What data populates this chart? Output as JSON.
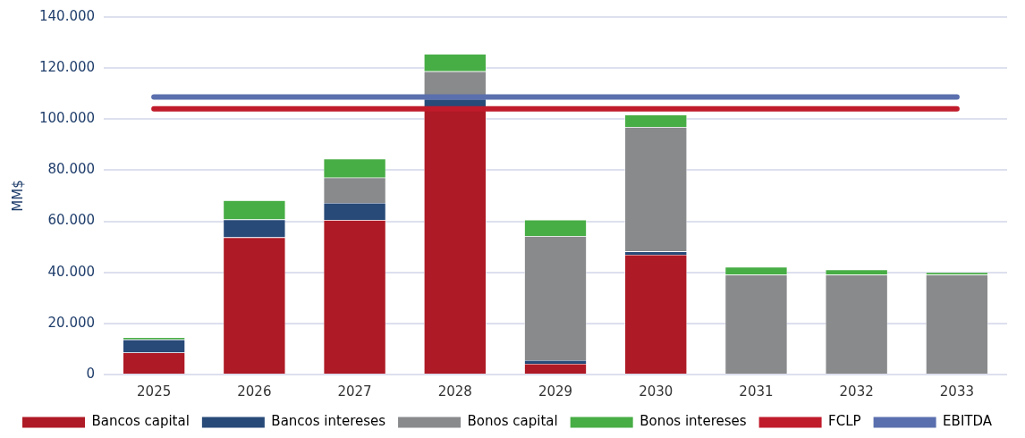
{
  "chart_data": {
    "type": "bar",
    "stacked": true,
    "ylabel": "MM$",
    "categories": [
      "2025",
      "2026",
      "2027",
      "2028",
      "2029",
      "2030",
      "2031",
      "2032",
      "2033"
    ],
    "series": [
      {
        "name": "Bancos capital",
        "color": "#ae1a25",
        "values": [
          8600,
          53700,
          60500,
          104900,
          4200,
          46900,
          0,
          0,
          0
        ]
      },
      {
        "name": "Bancos intereses",
        "color": "#284a78",
        "values": [
          5100,
          7000,
          6700,
          3000,
          1400,
          1300,
          0,
          0,
          0
        ]
      },
      {
        "name": "Bonos capital",
        "color": "#898a8c",
        "values": [
          0,
          0,
          9900,
          10800,
          48600,
          48700,
          39100,
          39100,
          39100
        ]
      },
      {
        "name": "Bonos intereses",
        "color": "#47ad45",
        "values": [
          900,
          7500,
          7400,
          6800,
          6400,
          4800,
          3000,
          2000,
          900
        ]
      },
      {
        "name": "FCLP",
        "type": "line",
        "color": "#c01b2b",
        "values": [
          104000,
          104000,
          104000,
          104000,
          104000,
          104000,
          104000,
          104000,
          104000
        ]
      },
      {
        "name": "EBITDA",
        "type": "line",
        "color": "#5a6fae",
        "values": [
          108700,
          108700,
          108700,
          108700,
          108700,
          108700,
          108700,
          108700,
          108700
        ]
      }
    ],
    "ylim": [
      0,
      140000
    ],
    "yticks": [
      0,
      {
        "value": 20000,
        "label": "20.000"
      },
      {
        "value": 40000,
        "label": "40.000"
      },
      {
        "value": 60000,
        "label": "60.000"
      },
      {
        "value": 80000,
        "label": "80.000"
      },
      {
        "value": 100000,
        "label": "100.000"
      },
      {
        "value": 120000,
        "label": "120.000"
      },
      {
        "value": 140000,
        "label": "140.000"
      }
    ],
    "grid": "y",
    "legend": "bottom",
    "marker": "none"
  }
}
